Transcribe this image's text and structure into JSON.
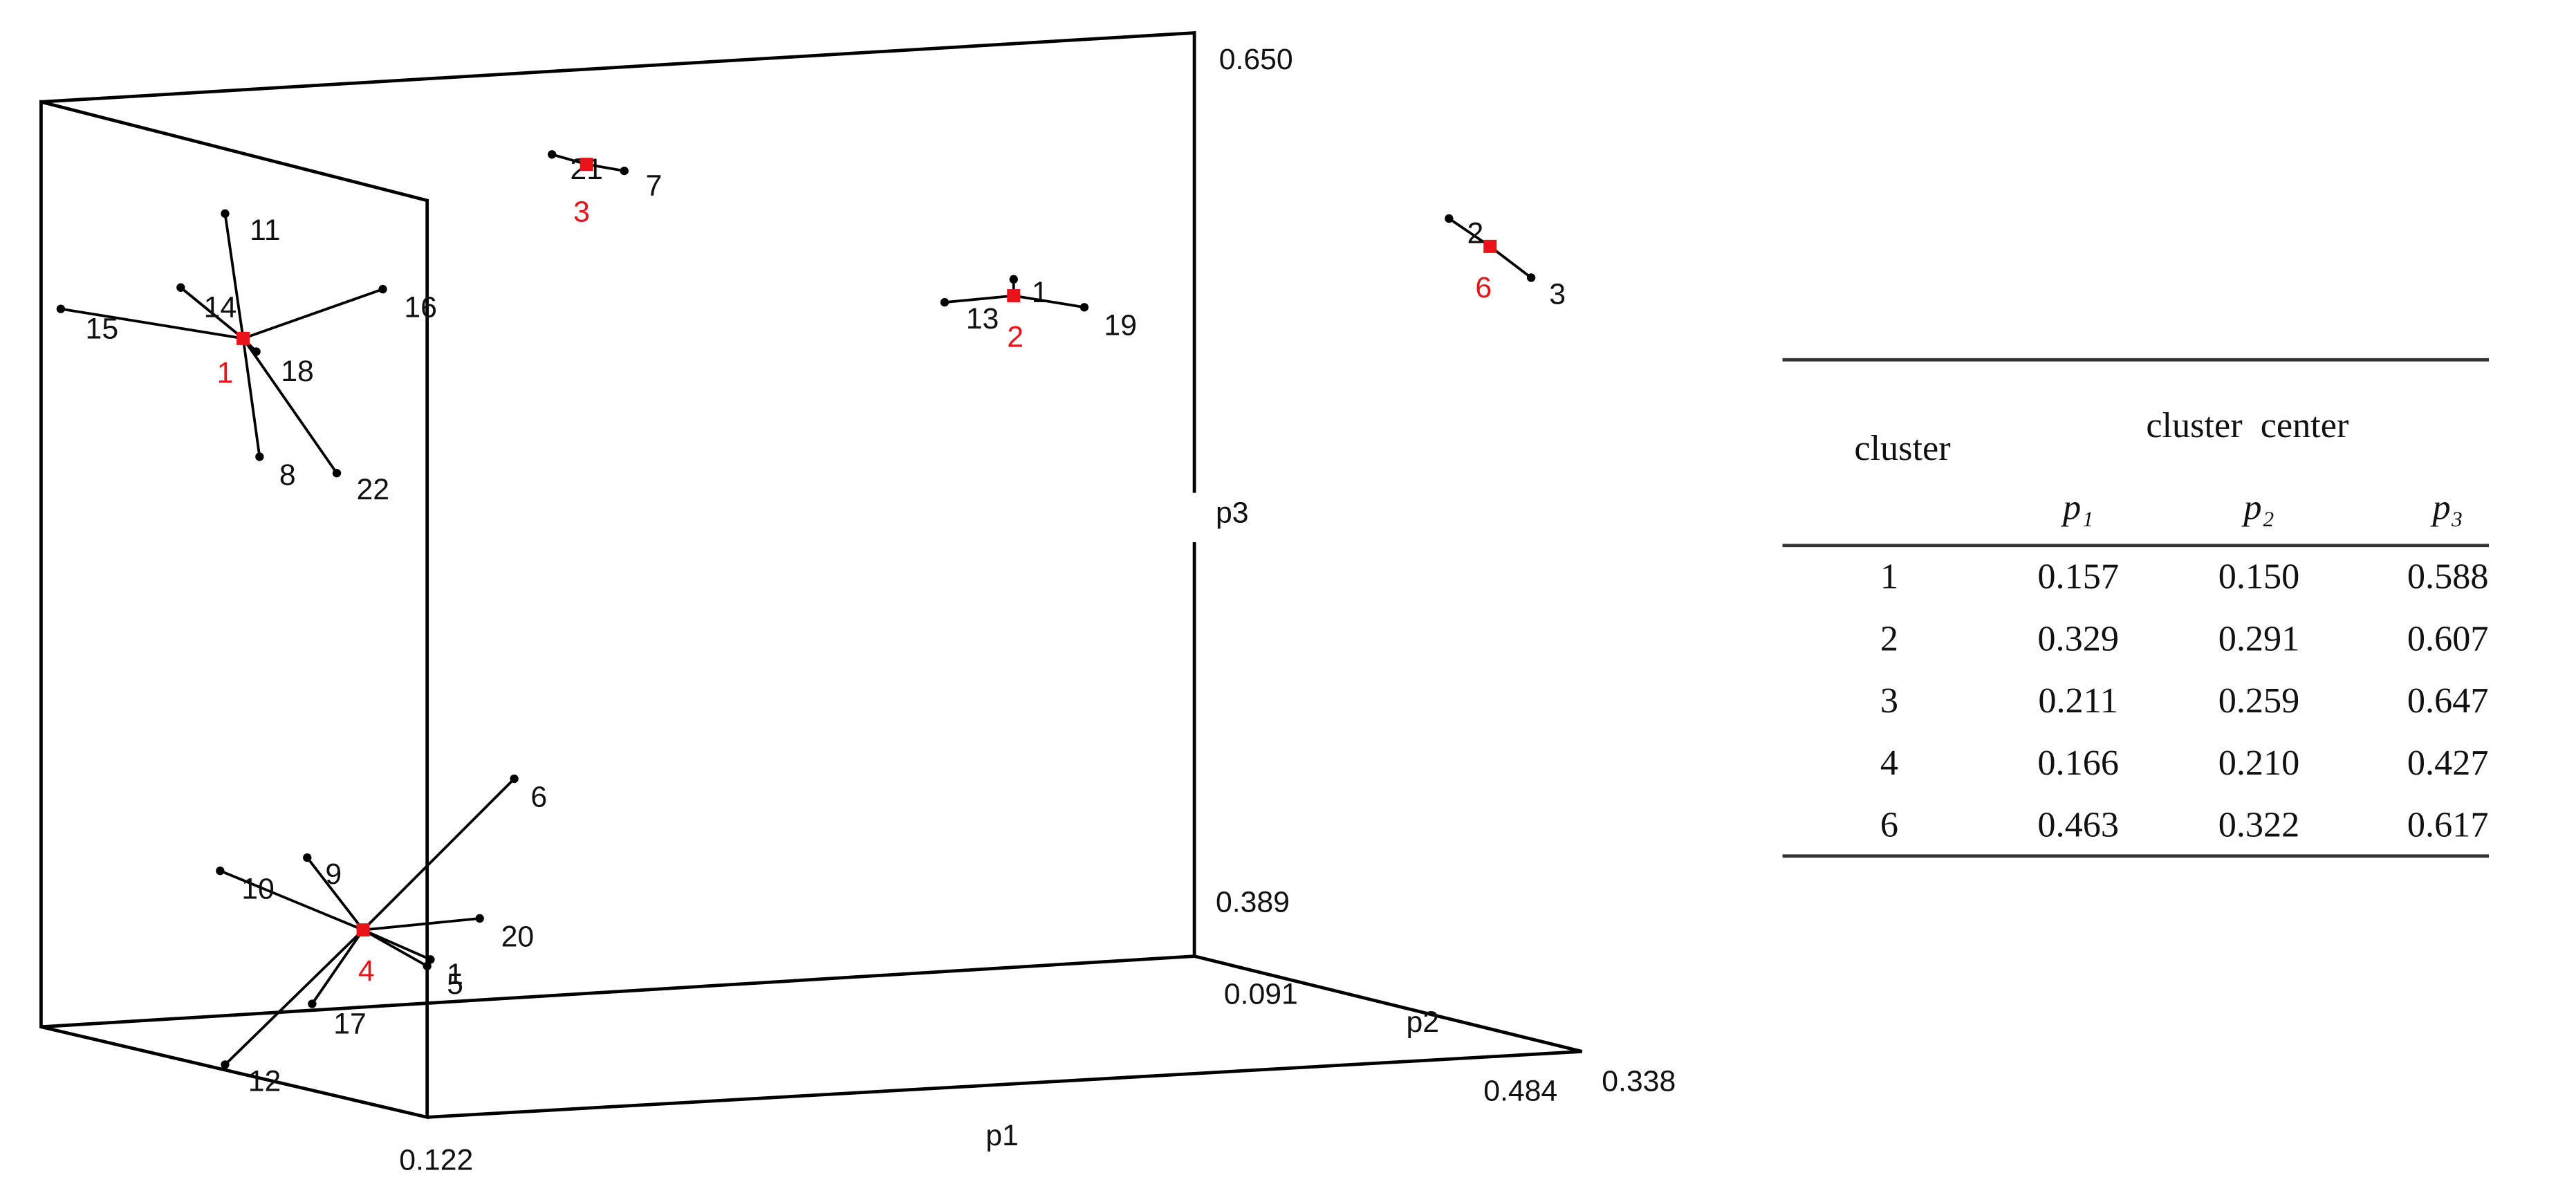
{
  "plot": {
    "axes": {
      "p1": {
        "label": "p1",
        "ticks": [
          "0.122",
          "0.484"
        ]
      },
      "p2": {
        "label": "p2",
        "ticks": [
          "0.091",
          "0.338"
        ]
      },
      "p3": {
        "label": "p3",
        "ticks": [
          "0.389",
          "0.650"
        ]
      }
    },
    "clusters": [
      {
        "id": "1",
        "points": [
          "11",
          "14",
          "16",
          "15",
          "18",
          "8",
          "22"
        ]
      },
      {
        "id": "3",
        "points": [
          "21",
          "7"
        ]
      },
      {
        "id": "2",
        "points": [
          "1",
          "13",
          "19"
        ]
      },
      {
        "id": "6",
        "points": [
          "2",
          "3"
        ]
      },
      {
        "id": "4",
        "points": [
          "6",
          "10",
          "9",
          "20",
          "1",
          "5",
          "17",
          "12"
        ]
      }
    ]
  },
  "table": {
    "header": {
      "cluster": "cluster",
      "center": "cluster  center",
      "columns": [
        "p₁",
        "p₂",
        "p₃"
      ]
    },
    "rows": [
      [
        "1",
        "0.157",
        "0.150",
        "0.588"
      ],
      [
        "2",
        "0.329",
        "0.291",
        "0.607"
      ],
      [
        "3",
        "0.211",
        "0.259",
        "0.647"
      ],
      [
        "4",
        "0.166",
        "0.210",
        "0.427"
      ],
      [
        "6",
        "0.463",
        "0.322",
        "0.617"
      ]
    ]
  }
}
